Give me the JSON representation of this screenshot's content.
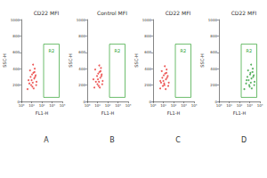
{
  "chart_data": [
    {
      "type": "scatter",
      "title": "CD22 MFI",
      "panel": "A",
      "xlabel": "FL1-H",
      "ylabel": "SSC-H",
      "color": "#e8312f",
      "marker": "circle",
      "log": "x",
      "grid": false,
      "xlim": [
        1,
        10000
      ],
      "xticks": [
        {
          "value": 1,
          "label": "10⁰"
        },
        {
          "value": 10,
          "label": "10¹"
        },
        {
          "value": 100,
          "label": "10²"
        },
        {
          "value": 1000,
          "label": "10³"
        },
        {
          "value": 10000,
          "label": "10⁴"
        }
      ],
      "ylim": [
        0,
        1000
      ],
      "yticks": [
        0,
        200,
        400,
        600,
        800,
        1000
      ],
      "x": [
        4,
        6,
        8,
        10,
        12,
        15,
        18,
        20,
        25,
        30,
        7,
        9,
        14,
        22,
        11,
        16,
        5,
        13,
        19,
        28
      ],
      "y": [
        150,
        220,
        300,
        260,
        180,
        350,
        280,
        400,
        320,
        240,
        380,
        200,
        450,
        300,
        330,
        160,
        260,
        230,
        360,
        200
      ],
      "gate": {
        "label": "R2",
        "x": [
          150,
          5000
        ],
        "y": [
          50,
          700
        ],
        "color": "#2ca02c"
      }
    },
    {
      "type": "scatter",
      "title": "Control MFI",
      "panel": "B",
      "xlabel": "FL1-H",
      "ylabel": "SSC-H",
      "color": "#e8312f",
      "marker": "circle",
      "log": "x",
      "grid": false,
      "xlim": [
        1,
        10000
      ],
      "xticks": [
        {
          "value": 1,
          "label": "10⁰"
        },
        {
          "value": 10,
          "label": "10¹"
        },
        {
          "value": 100,
          "label": "10²"
        },
        {
          "value": 1000,
          "label": "10³"
        },
        {
          "value": 10000,
          "label": "10⁴"
        }
      ],
      "ylim": [
        0,
        1000
      ],
      "yticks": [
        0,
        200,
        400,
        600,
        800,
        1000
      ],
      "x": [
        5,
        7,
        9,
        11,
        13,
        16,
        19,
        22,
        26,
        32,
        6,
        10,
        15,
        24,
        12,
        17,
        4,
        14,
        20,
        29
      ],
      "y": [
        170,
        240,
        310,
        270,
        190,
        360,
        290,
        410,
        330,
        250,
        390,
        210,
        440,
        310,
        340,
        170,
        270,
        240,
        370,
        210
      ],
      "gate": {
        "label": "R2",
        "x": [
          150,
          5000
        ],
        "y": [
          50,
          700
        ],
        "color": "#2ca02c"
      }
    },
    {
      "type": "scatter",
      "title": "CD22 MFI",
      "panel": "C",
      "xlabel": "FL1-H",
      "ylabel": "SSC-H",
      "color": "#e8312f",
      "marker": "circle",
      "log": "x",
      "grid": false,
      "xlim": [
        1,
        10000
      ],
      "xticks": [
        {
          "value": 1,
          "label": "10⁰"
        },
        {
          "value": 10,
          "label": "10¹"
        },
        {
          "value": 100,
          "label": "10²"
        },
        {
          "value": 1000,
          "label": "10³"
        },
        {
          "value": 10000,
          "label": "10⁴"
        }
      ],
      "ylim": [
        0,
        1000
      ],
      "yticks": [
        0,
        200,
        400,
        600,
        800,
        1000
      ],
      "x": [
        5,
        6,
        8,
        10,
        13,
        15,
        18,
        21,
        27,
        34,
        7,
        9,
        14,
        23,
        11,
        17,
        5,
        12,
        20,
        30
      ],
      "y": [
        160,
        230,
        290,
        250,
        200,
        340,
        270,
        390,
        310,
        230,
        370,
        190,
        430,
        290,
        320,
        150,
        250,
        220,
        350,
        190
      ],
      "gate": {
        "label": "R2",
        "x": [
          150,
          5000
        ],
        "y": [
          50,
          700
        ],
        "color": "#2ca02c"
      }
    },
    {
      "type": "scatter",
      "title": "CD22 MFI",
      "panel": "D",
      "xlabel": "FL1-H",
      "ylabel": "SSC-H",
      "color": "#2e9e3a",
      "marker": "circle",
      "log": "x",
      "grid": false,
      "xlim": [
        1,
        10000
      ],
      "xticks": [
        {
          "value": 1,
          "label": "10⁰"
        },
        {
          "value": 10,
          "label": "10¹"
        },
        {
          "value": 100,
          "label": "10²"
        },
        {
          "value": 1000,
          "label": "10³"
        },
        {
          "value": 10000,
          "label": "10⁴"
        }
      ],
      "ylim": [
        0,
        1000
      ],
      "yticks": [
        0,
        200,
        400,
        600,
        800,
        1000
      ],
      "x": [
        300,
        450,
        600,
        800,
        1000,
        1200,
        1500,
        2000,
        2500,
        3000,
        700,
        900,
        1400,
        2200,
        1100,
        1600,
        500,
        1300,
        1900,
        2800
      ],
      "y": [
        150,
        220,
        300,
        260,
        180,
        350,
        280,
        400,
        320,
        240,
        380,
        200,
        450,
        300,
        330,
        160,
        260,
        230,
        360,
        200
      ],
      "gate": {
        "label": "R2",
        "x": [
          150,
          5000
        ],
        "y": [
          50,
          700
        ],
        "color": "#2ca02c"
      }
    }
  ]
}
